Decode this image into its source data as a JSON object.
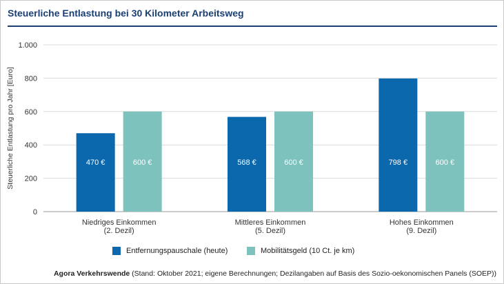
{
  "colors": {
    "title": "#1b3f73",
    "series_1": "#0b68ad",
    "series_2": "#7dc2bc"
  },
  "chart_data": {
    "type": "bar",
    "title": "Steuerliche Entlastung bei 30 Kilometer Arbeitsweg",
    "ylabel": "Steuerliche Entlastung pro Jahr [Euro]",
    "xlabel": "",
    "ylim": [
      0,
      1000
    ],
    "yticks": [
      0,
      200,
      400,
      600,
      800,
      1000
    ],
    "ytick_labels": [
      "0",
      "200",
      "400",
      "600",
      "800",
      "1.000"
    ],
    "grid": true,
    "legend_position": "bottom",
    "categories": [
      [
        "Niedriges Einkommen",
        "(2. Dezil)"
      ],
      [
        "Mittleres Einkommen",
        "(5. Dezil)"
      ],
      [
        "Hohes Einkommen",
        "(9. Dezil)"
      ]
    ],
    "series": [
      {
        "name": "Entfernungspauschale (heute)",
        "values": [
          470,
          568,
          798
        ],
        "labels": [
          "470 €",
          "568 €",
          "798 €"
        ]
      },
      {
        "name": "Mobilitätsgeld (10 Ct. je km)",
        "values": [
          600,
          600,
          600
        ],
        "labels": [
          "600 €",
          "600 €",
          "600 €"
        ]
      }
    ],
    "source_org": "Agora Verkehrswende",
    "source_note": "(Stand: Oktober 2021; eigene Berechnungen; Dezilangaben auf Basis des Sozio-oekonomischen Panels (SOEP))"
  }
}
